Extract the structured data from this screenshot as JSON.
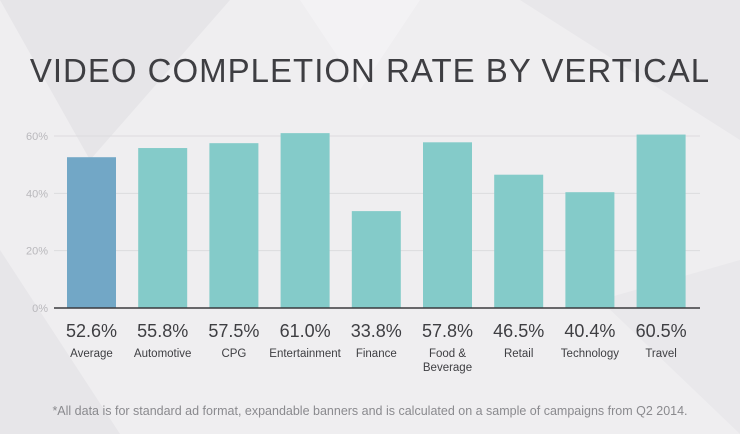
{
  "chart_data": {
    "type": "bar",
    "title": "VIDEO COMPLETION RATE BY VERTICAL",
    "categories": [
      "Average",
      "Automotive",
      "CPG",
      "Entertainment",
      "Finance",
      "Food & Beverage",
      "Retail",
      "Technology",
      "Travel"
    ],
    "category_lines": [
      [
        "Average"
      ],
      [
        "Automotive"
      ],
      [
        "CPG"
      ],
      [
        "Entertainment"
      ],
      [
        "Finance"
      ],
      [
        "Food &",
        "Beverage"
      ],
      [
        "Retail"
      ],
      [
        "Technology"
      ],
      [
        "Travel"
      ]
    ],
    "values": [
      52.6,
      55.8,
      57.5,
      61.0,
      33.8,
      57.8,
      46.5,
      40.4,
      60.5
    ],
    "value_labels": [
      "52.6%",
      "55.8%",
      "57.5%",
      "61.0%",
      "33.8%",
      "57.8%",
      "46.5%",
      "40.4%",
      "60.5%"
    ],
    "colors": [
      "#72a7c6",
      "#84cbc9",
      "#84cbc9",
      "#84cbc9",
      "#84cbc9",
      "#84cbc9",
      "#84cbc9",
      "#84cbc9",
      "#84cbc9"
    ],
    "yticks": [
      0,
      20,
      40,
      60
    ],
    "ytick_labels": [
      "0%",
      "20%",
      "40%",
      "60%"
    ],
    "ylim": [
      0,
      60
    ],
    "xlabel": "",
    "ylabel": "",
    "grid": true,
    "legend": "none"
  },
  "footnote": "*All data is for standard ad format, expandable banners and is calculated on a sample of campaigns from Q2 2014."
}
